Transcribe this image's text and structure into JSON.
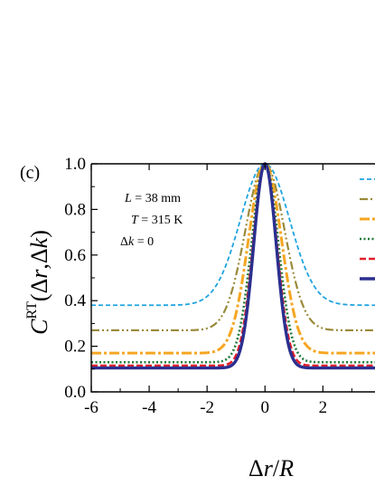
{
  "chart_data": {
    "type": "line",
    "panel_label": "(c)",
    "xlabel": "Δr/R",
    "ylabel": "C^RT(Δr,Δk)",
    "xlim": [
      -6,
      3.8
    ],
    "ylim": [
      0.0,
      1.0
    ],
    "x_ticks": [
      -6,
      -4,
      -2,
      0,
      2
    ],
    "y_ticks": [
      0.0,
      0.2,
      0.4,
      0.6,
      0.8,
      1.0
    ],
    "x_tick_labels": [
      "-6",
      "-4",
      "-2",
      "0",
      "2"
    ],
    "y_tick_labels": [
      "0.0",
      "0.2",
      "0.4",
      "0.6",
      "0.8",
      "1.0"
    ],
    "parameters": {
      "L": "38 mm",
      "T": "315 K",
      "dk": "0"
    },
    "series": [
      {
        "color": "#1fa3e0",
        "dash": "short-dash",
        "plateau": 0.38,
        "width": 1.2
      },
      {
        "color": "#9a8a3a",
        "dash": "dash-dot-dot",
        "plateau": 0.27,
        "width": 0.95
      },
      {
        "color": "#f5a623",
        "dash": "dash-dot",
        "plateau": 0.17,
        "width": 0.8
      },
      {
        "color": "#1f7a3a",
        "dash": "dotted",
        "plateau": 0.13,
        "width": 0.65
      },
      {
        "color": "#e0202a",
        "dash": "dashed",
        "plateau": 0.115,
        "width": 0.58
      },
      {
        "color": "#2b2f8f",
        "dash": "solid",
        "plateau": 0.105,
        "width": 0.55
      }
    ]
  }
}
